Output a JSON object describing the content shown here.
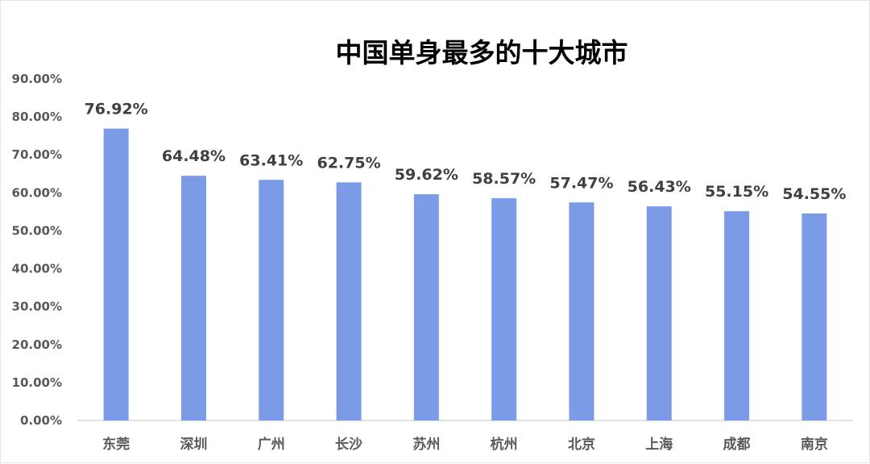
{
  "chart_data": {
    "type": "bar",
    "title": "中国单身最多的十大城市",
    "xlabel": "",
    "ylabel": "",
    "categories": [
      "东莞",
      "深圳",
      "广州",
      "长沙",
      "苏州",
      "杭州",
      "北京",
      "上海",
      "成都",
      "南京"
    ],
    "values": [
      76.92,
      64.48,
      63.41,
      62.75,
      59.62,
      58.57,
      57.47,
      56.43,
      55.15,
      54.55
    ],
    "value_labels": [
      "76.92%",
      "64.48%",
      "63.41%",
      "62.75%",
      "59.62%",
      "58.57%",
      "57.47%",
      "56.43%",
      "55.15%",
      "54.55%"
    ],
    "ylim": [
      0,
      90
    ],
    "yticks": [
      0,
      10,
      20,
      30,
      40,
      50,
      60,
      70,
      80,
      90
    ],
    "ytick_labels": [
      "0.00%",
      "10.00%",
      "20.00%",
      "30.00%",
      "40.00%",
      "50.00%",
      "60.00%",
      "70.00%",
      "80.00%",
      "90.00%"
    ],
    "grid": false,
    "legend": "none",
    "bar_color": "#7b9be6"
  }
}
